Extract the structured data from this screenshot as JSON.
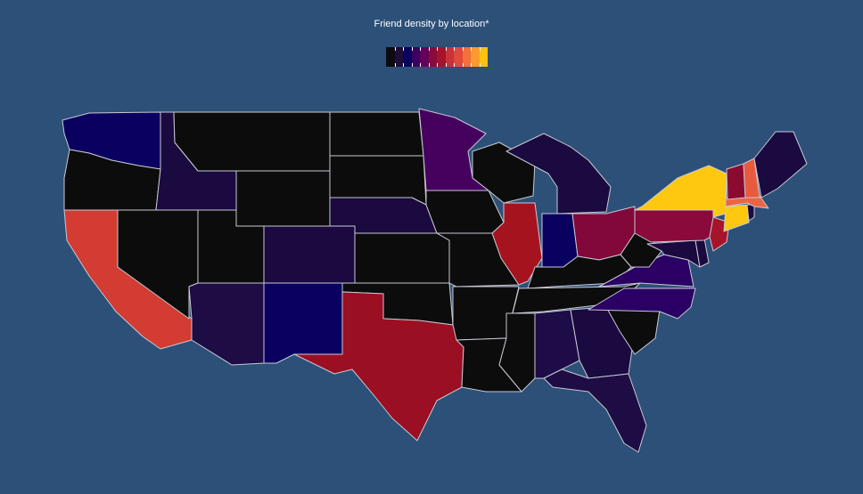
{
  "title": "Friend density by location*",
  "colors": {
    "background": "#2c5078",
    "border": "#c8c8d2"
  },
  "legend": {
    "scale": [
      "#0c0c10",
      "#1e0c3a",
      "#0a0060",
      "#3a0060",
      "#64005a",
      "#8a0a3c",
      "#a5142a",
      "#c8323a",
      "#e04a3c",
      "#f2703a",
      "#fa9a30",
      "#ffc010"
    ]
  },
  "states": [
    {
      "name": "WA",
      "color": "#0a0060"
    },
    {
      "name": "OR",
      "color": "#0c0c0c"
    },
    {
      "name": "CA",
      "color": "#d23c32"
    },
    {
      "name": "NV",
      "color": "#0c0c0c"
    },
    {
      "name": "ID",
      "color": "#1a0a40"
    },
    {
      "name": "MT",
      "color": "#0c0c0c"
    },
    {
      "name": "WY",
      "color": "#0c0c0c"
    },
    {
      "name": "UT",
      "color": "#0c0c0c"
    },
    {
      "name": "AZ",
      "color": "#1e0c44"
    },
    {
      "name": "CO",
      "color": "#1a0a40"
    },
    {
      "name": "NM",
      "color": "#0a0060"
    },
    {
      "name": "ND",
      "color": "#0c0c0c"
    },
    {
      "name": "SD",
      "color": "#0c0c0c"
    },
    {
      "name": "NE",
      "color": "#1a0a40"
    },
    {
      "name": "KS",
      "color": "#0c0c0c"
    },
    {
      "name": "OK",
      "color": "#0c0c0c"
    },
    {
      "name": "TX",
      "color": "#9a0f22"
    },
    {
      "name": "MN",
      "color": "#46005e"
    },
    {
      "name": "IA",
      "color": "#0c0c0c"
    },
    {
      "name": "MO",
      "color": "#0c0c0c"
    },
    {
      "name": "AR",
      "color": "#0c0c0c"
    },
    {
      "name": "LA",
      "color": "#0c0c0c"
    },
    {
      "name": "WI",
      "color": "#0c0c0c"
    },
    {
      "name": "IL",
      "color": "#a5141e"
    },
    {
      "name": "MS",
      "color": "#0c0c0c"
    },
    {
      "name": "MI",
      "color": "#1a0a40"
    },
    {
      "name": "IN",
      "color": "#0a0060"
    },
    {
      "name": "OH",
      "color": "#82083a"
    },
    {
      "name": "KY",
      "color": "#0c0c0c"
    },
    {
      "name": "TN",
      "color": "#0c0c0c"
    },
    {
      "name": "AL",
      "color": "#1e0c48"
    },
    {
      "name": "GA",
      "color": "#1a0a40"
    },
    {
      "name": "FL",
      "color": "#1e0c44"
    },
    {
      "name": "SC",
      "color": "#0c0c0c"
    },
    {
      "name": "NC",
      "color": "#2a0064"
    },
    {
      "name": "VA",
      "color": "#2a0064"
    },
    {
      "name": "WV",
      "color": "#0c0c0c"
    },
    {
      "name": "MD",
      "color": "#1a0a40"
    },
    {
      "name": "DE",
      "color": "#1a0a40"
    },
    {
      "name": "PA",
      "color": "#8a0a3c"
    },
    {
      "name": "NJ",
      "color": "#a5142a"
    },
    {
      "name": "NY",
      "color": "#ffc810"
    },
    {
      "name": "CT",
      "color": "#ffc810"
    },
    {
      "name": "RI",
      "color": "#1a0a40"
    },
    {
      "name": "MA",
      "color": "#ec6442"
    },
    {
      "name": "VT",
      "color": "#8a0a30"
    },
    {
      "name": "NH",
      "color": "#e85a3e"
    },
    {
      "name": "ME",
      "color": "#1a0a40"
    }
  ]
}
